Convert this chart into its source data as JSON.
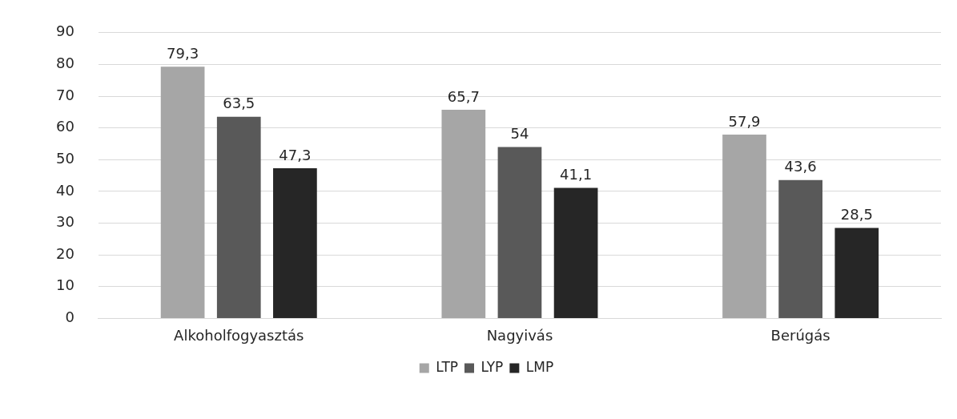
{
  "chart_data": {
    "type": "bar",
    "categories": [
      "Alkoholfogyasztás",
      "Nagyivás",
      "Berúgás"
    ],
    "series": [
      {
        "name": "LTP",
        "color": "#a6a6a6",
        "values": [
          79.3,
          65.7,
          57.9
        ],
        "value_labels": [
          "79,3",
          "65,7",
          "57,9"
        ]
      },
      {
        "name": "LYP",
        "color": "#595959",
        "values": [
          63.5,
          54,
          43.6
        ],
        "value_labels": [
          "63,5",
          "54",
          "43,6"
        ]
      },
      {
        "name": "LMP",
        "color": "#262626",
        "values": [
          47.3,
          41.1,
          28.5
        ],
        "value_labels": [
          "47,3",
          "41,1",
          "28,5"
        ]
      }
    ],
    "ylim": [
      0,
      90
    ],
    "yticks": [
      0,
      10,
      20,
      30,
      40,
      50,
      60,
      70,
      80,
      90
    ],
    "grid": "y",
    "legend": "bottom"
  }
}
